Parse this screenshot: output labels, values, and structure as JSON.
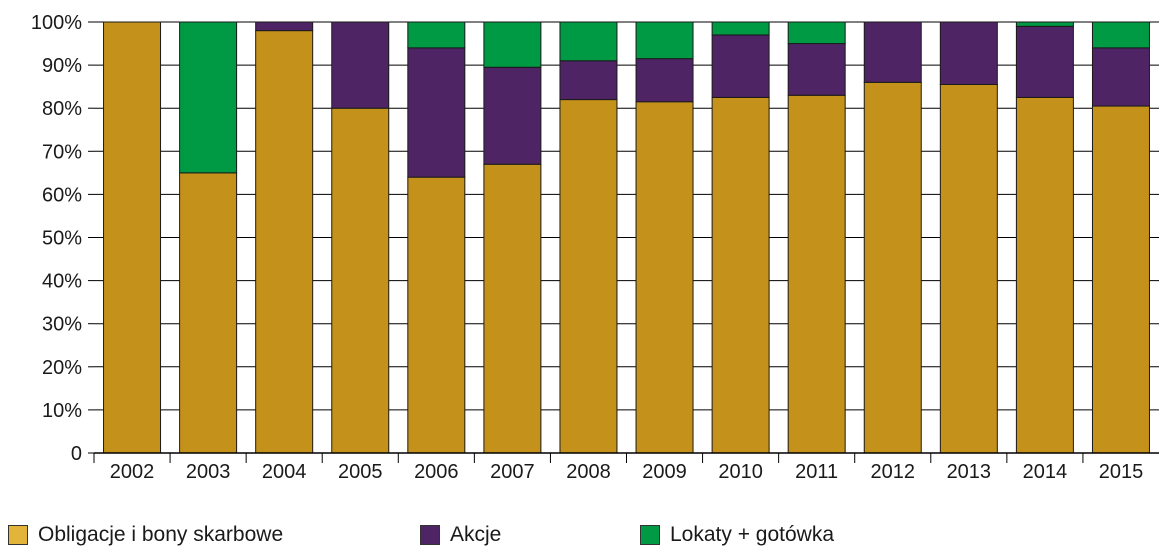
{
  "chart_data": {
    "type": "bar",
    "stacked": true,
    "categories": [
      "2002",
      "2003",
      "2004",
      "2005",
      "2006",
      "2007",
      "2008",
      "2009",
      "2010",
      "2011",
      "2012",
      "2013",
      "2014",
      "2015"
    ],
    "series": [
      {
        "name": "Obligacje i bony skarbowe",
        "color": "#C4911A",
        "values": [
          100,
          65,
          98,
          80,
          64,
          67,
          82,
          81.5,
          82.5,
          83,
          86,
          85.5,
          82.5,
          80.5
        ]
      },
      {
        "name": "Akcje",
        "color": "#4E2464",
        "values": [
          0,
          0,
          2,
          20,
          30,
          22.5,
          9,
          10,
          14.5,
          12,
          14,
          14.5,
          16.5,
          13.5
        ]
      },
      {
        "name": "Lokaty + gotówka",
        "color": "#009A44",
        "values": [
          0,
          35,
          0,
          0,
          6,
          10.5,
          9,
          8.5,
          3,
          5,
          0,
          0,
          1,
          6
        ]
      }
    ],
    "y_tick_labels": [
      "0",
      "10%",
      "20%",
      "30%",
      "40%",
      "50%",
      "60%",
      "70%",
      "80%",
      "90%",
      "100%"
    ],
    "ylim": [
      0,
      100
    ],
    "grid": true,
    "legend_position": "bottom"
  },
  "legend": {
    "item1": "Obligacje i bony skarbowe",
    "item2": "Akcje",
    "item3": "Lokaty + gotówka"
  }
}
